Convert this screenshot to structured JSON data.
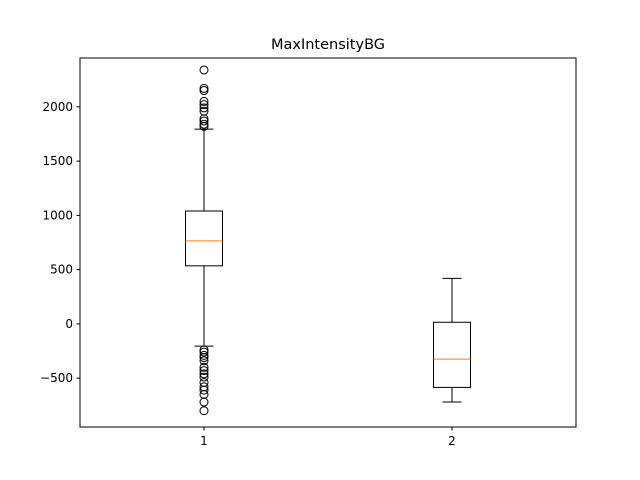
{
  "chart_data": {
    "type": "boxplot",
    "title": "MaxIntensityBG",
    "xlabel": "",
    "ylabel": "",
    "categories": [
      "1",
      "2"
    ],
    "ylim": [
      -950,
      2450
    ],
    "xlim": [
      0.5,
      2.5
    ],
    "yticks": [
      -500,
      0,
      500,
      1000,
      1500,
      2000
    ],
    "ytick_labels": [
      "−500",
      "0",
      "500",
      "1000",
      "1500",
      "2000"
    ],
    "grid": false,
    "legend": "none",
    "colors": {
      "box": "#000000",
      "median": "#ff7f0e",
      "background": "#ffffff"
    },
    "boxes": [
      {
        "position": 1,
        "label": "1",
        "whisker_low": -205,
        "q1": 535,
        "median": 765,
        "q3": 1040,
        "whisker_high": 1795,
        "outliers": [
          1820,
          1840,
          1870,
          1890,
          1960,
          1990,
          2020,
          2050,
          2150,
          2170,
          2340,
          -240,
          -260,
          -290,
          -310,
          -340,
          -400,
          -430,
          -460,
          -490,
          -540,
          -580,
          -610,
          -650,
          -720,
          -800
        ]
      },
      {
        "position": 2,
        "label": "2",
        "whisker_low": -720,
        "q1": -585,
        "median": -325,
        "q3": 15,
        "whisker_high": 420,
        "outliers": []
      }
    ]
  }
}
